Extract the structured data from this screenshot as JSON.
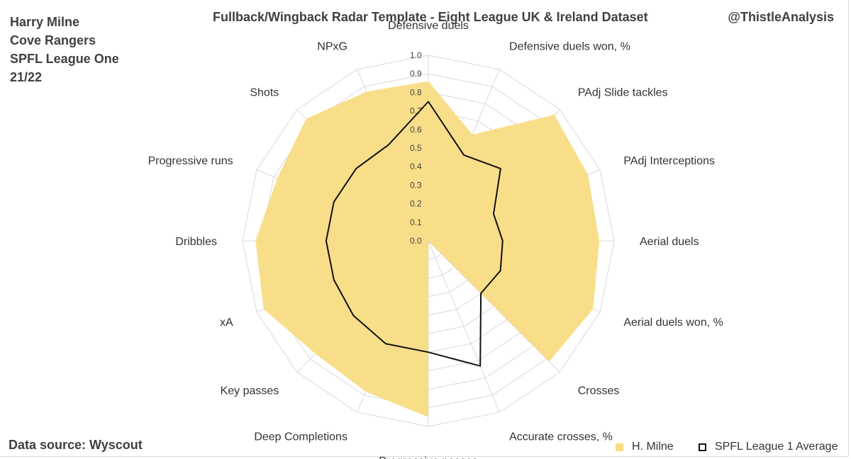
{
  "header": {
    "player_name": "Harry Milne",
    "team": "Cove Rangers",
    "league": "SPFL League One",
    "season": "21/22",
    "title": "Fullback/Wingback Radar Template - Eight League UK & Ireland Dataset",
    "handle": "@ThistleAnalysis"
  },
  "footer": {
    "source": "Data source: Wyscout"
  },
  "colors": {
    "player_fill": "#f9dc84",
    "average_line": "#111111",
    "grid": "#d9d9d9"
  },
  "chart_data": {
    "type": "radar",
    "title": "Fullback/Wingback Radar Template - Eight League UK & Ireland Dataset",
    "categories": [
      "Defensive duels",
      "Defensive duels won, %",
      "PAdj Slide tackles",
      "PAdj Interceptions",
      "Aerial duels",
      "Aerial duels won, %",
      "Crosses",
      "Accurate crosses, %",
      "Progressive passes",
      "Deep Completions",
      "Key passes",
      "xA",
      "Dribbles",
      "Progressive runs",
      "Shots",
      "NPxG"
    ],
    "rlim": [
      0,
      1.0
    ],
    "ticks": [
      "0.0",
      "0.1",
      "0.2",
      "0.3",
      "0.4",
      "0.5",
      "0.6",
      "0.7",
      "0.8",
      "0.9",
      "1.0"
    ],
    "series": [
      {
        "name": "H. Milne",
        "style": "filled",
        "values": [
          0.86,
          0.62,
          0.96,
          0.93,
          0.92,
          0.96,
          0.92,
          0.0,
          0.95,
          0.88,
          0.86,
          0.96,
          0.93,
          0.88,
          0.93,
          0.87
        ]
      },
      {
        "name": "SPFL League 1 Average",
        "style": "outline",
        "values": [
          0.75,
          0.5,
          0.55,
          0.38,
          0.4,
          0.42,
          0.4,
          0.73,
          0.6,
          0.6,
          0.57,
          0.55,
          0.55,
          0.55,
          0.55,
          0.56
        ]
      }
    ],
    "legend": [
      "H. Milne",
      "SPFL League 1 Average"
    ],
    "legend_position": "bottom-right"
  }
}
